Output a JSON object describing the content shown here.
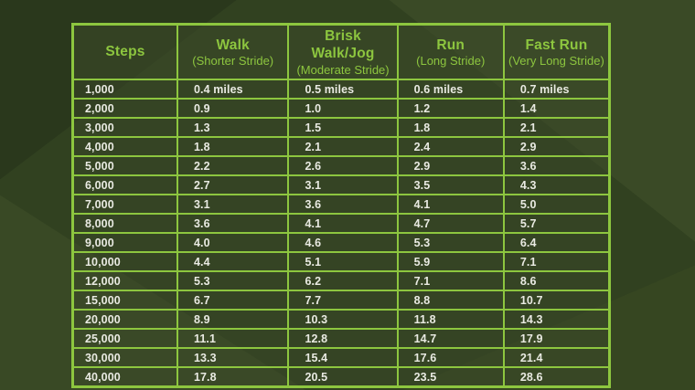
{
  "colors": {
    "page_background": "#2f3e20",
    "grid_green": "#8dc63f",
    "header_text": "#8dc63f",
    "body_text": "#e9eae2",
    "cell_background": "#3c4a2a"
  },
  "chart_data": {
    "type": "table",
    "columns": [
      {
        "title": "Steps",
        "subtitle": ""
      },
      {
        "title": "Walk",
        "subtitle": "(Shorter Stride)"
      },
      {
        "title": "Brisk Walk/Jog",
        "subtitle": "(Moderate Stride)"
      },
      {
        "title": "Run",
        "subtitle": "(Long Stride)"
      },
      {
        "title": "Fast Run",
        "subtitle": "(Very Long Stride)"
      }
    ],
    "rows": [
      [
        "1,000",
        "0.4 miles",
        "0.5 miles",
        "0.6 miles",
        "0.7 miles"
      ],
      [
        "2,000",
        "0.9",
        "1.0",
        "1.2",
        "1.4"
      ],
      [
        "3,000",
        "1.3",
        "1.5",
        "1.8",
        "2.1"
      ],
      [
        "4,000",
        "1.8",
        "2.1",
        "2.4",
        "2.9"
      ],
      [
        "5,000",
        "2.2",
        "2.6",
        "2.9",
        "3.6"
      ],
      [
        "6,000",
        "2.7",
        "3.1",
        "3.5",
        "4.3"
      ],
      [
        "7,000",
        "3.1",
        "3.6",
        "4.1",
        "5.0"
      ],
      [
        "8,000",
        "3.6",
        "4.1",
        "4.7",
        "5.7"
      ],
      [
        "9,000",
        "4.0",
        "4.6",
        "5.3",
        "6.4"
      ],
      [
        "10,000",
        "4.4",
        "5.1",
        "5.9",
        "7.1"
      ],
      [
        "12,000",
        "5.3",
        "6.2",
        "7.1",
        "8.6"
      ],
      [
        "15,000",
        "6.7",
        "7.7",
        "8.8",
        "10.7"
      ],
      [
        "20,000",
        "8.9",
        "10.3",
        "11.8",
        "14.3"
      ],
      [
        "25,000",
        "11.1",
        "12.8",
        "14.7",
        "17.9"
      ],
      [
        "30,000",
        "13.3",
        "15.4",
        "17.6",
        "21.4"
      ],
      [
        "40,000",
        "17.8",
        "20.5",
        "23.5",
        "28.6"
      ]
    ],
    "column_widths_pct": [
      19.5,
      20.7,
      20.3,
      19.8,
      19.7
    ],
    "grid": true,
    "legend_position": "none"
  }
}
